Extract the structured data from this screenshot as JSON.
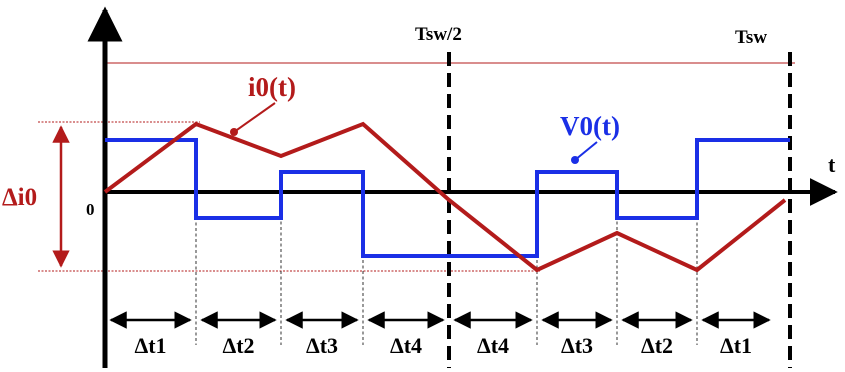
{
  "labels": {
    "origin": "0",
    "t_axis": "t",
    "half_period": "Tsw/2",
    "period": "Tsw",
    "current": "i0(t)",
    "voltage": "V0(t)",
    "ripple": "Δi0"
  },
  "intervals": [
    "Δt1",
    "Δt2",
    "Δt3",
    "Δt4",
    "Δt4",
    "Δt3",
    "Δt2",
    "Δt1"
  ],
  "colors": {
    "axis": "#000000",
    "current": "#b31b1b",
    "voltage": "#1a2fe6",
    "reference_lines": "#b31b1b",
    "background": "#ffffff"
  }
}
